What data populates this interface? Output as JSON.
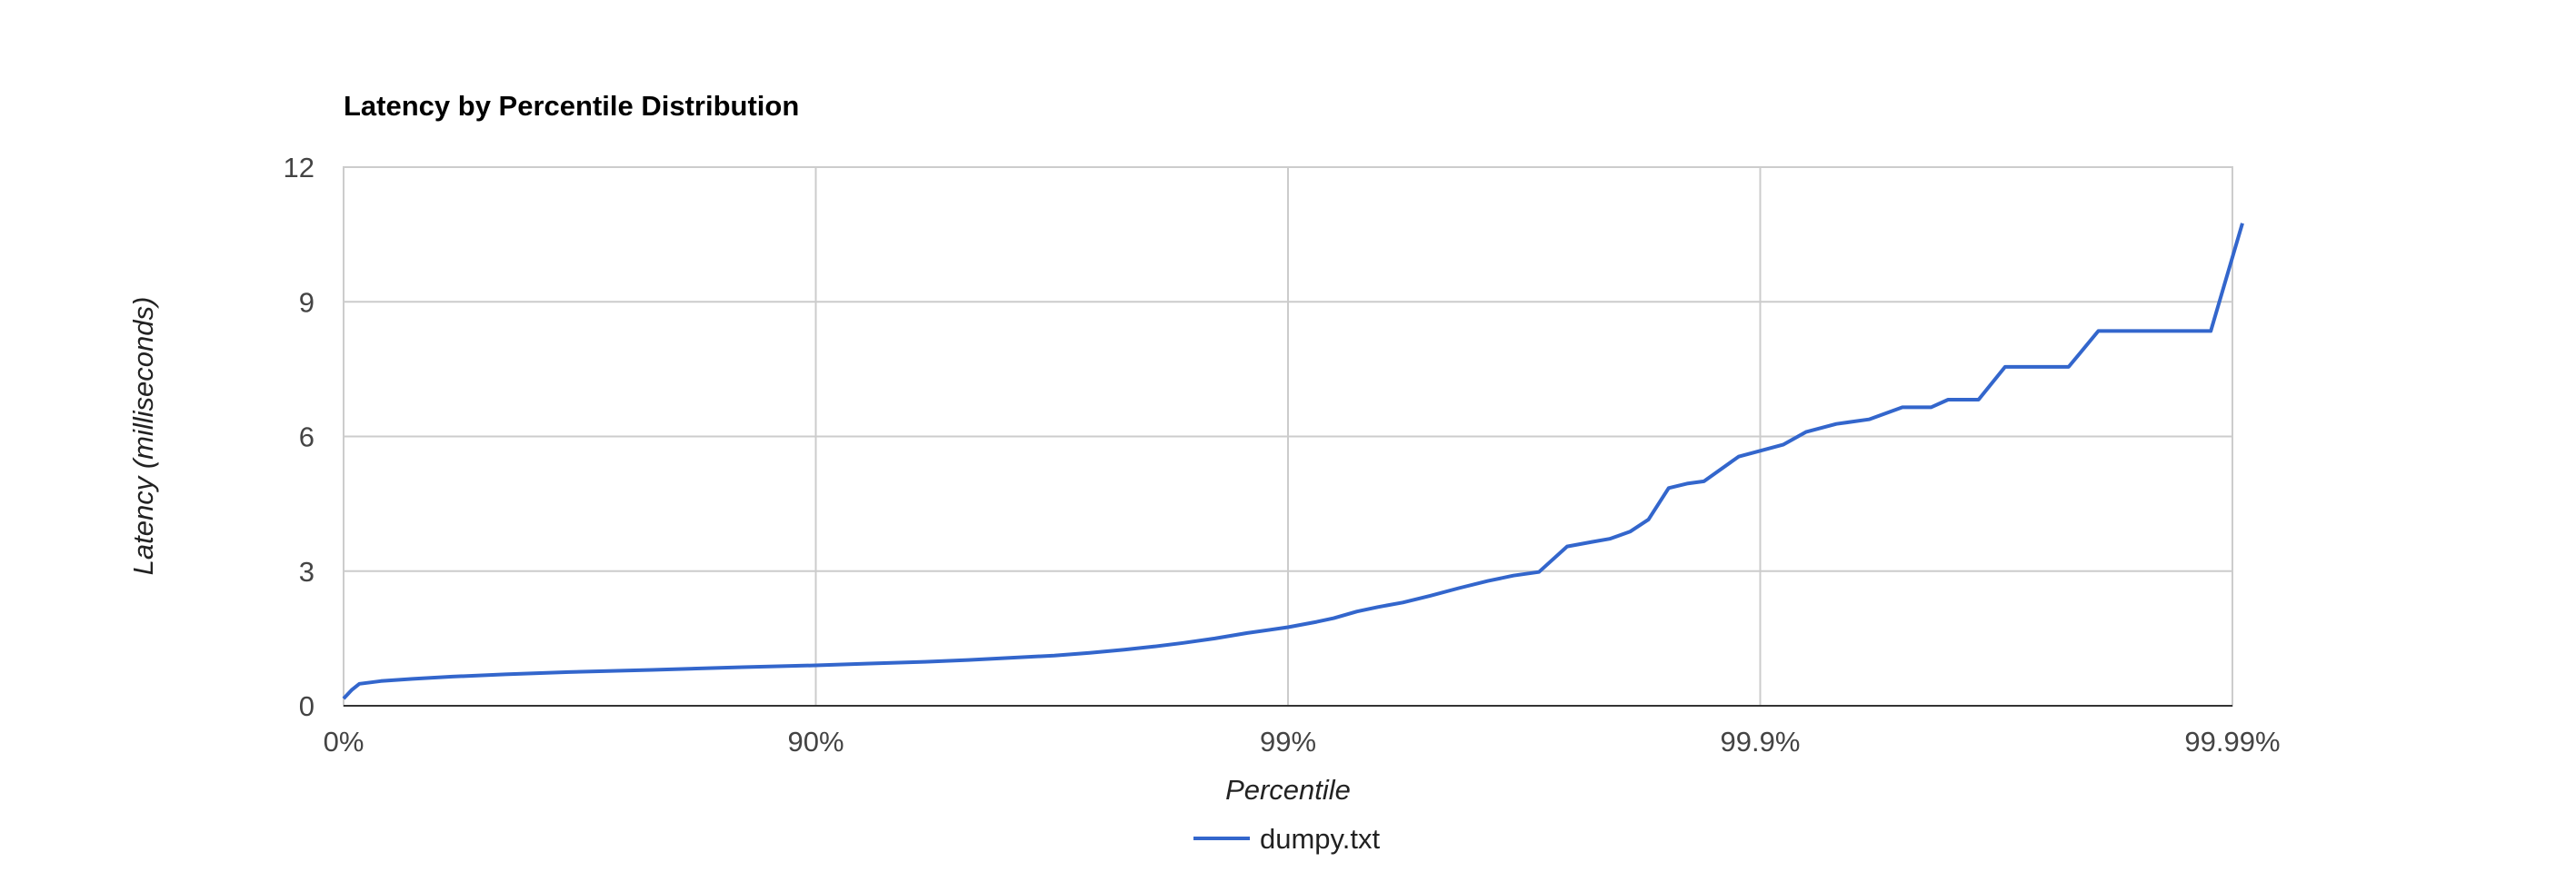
{
  "chart_data": {
    "type": "line",
    "title": "Latency by Percentile Distribution",
    "xlabel": "Percentile",
    "ylabel": "Latency (milliseconds)",
    "x_scale": "log-percentile (inverse of 1 - percentile)",
    "xlim": [
      1,
      10000
    ],
    "ylim": [
      0,
      12
    ],
    "x_ticks": [
      {
        "value": 1,
        "label": "0%"
      },
      {
        "value": 10,
        "label": "90%"
      },
      {
        "value": 100,
        "label": "99%"
      },
      {
        "value": 1000,
        "label": "99.9%"
      },
      {
        "value": 10000,
        "label": "99.99%"
      }
    ],
    "y_ticks": [
      {
        "value": 0,
        "label": "0"
      },
      {
        "value": 3,
        "label": "3"
      },
      {
        "value": 6,
        "label": "6"
      },
      {
        "value": 9,
        "label": "9"
      },
      {
        "value": 12,
        "label": "12"
      }
    ],
    "grid": true,
    "legend_position": "bottom",
    "series": [
      {
        "name": "dumpy.txt",
        "color": "#3366cc",
        "points": [
          [
            1.0,
            0.16
          ],
          [
            1.04,
            0.35
          ],
          [
            1.08,
            0.49
          ],
          [
            1.1,
            0.5
          ],
          [
            1.2,
            0.55
          ],
          [
            1.4,
            0.6
          ],
          [
            1.7,
            0.65
          ],
          [
            2.2,
            0.7
          ],
          [
            3.0,
            0.75
          ],
          [
            4.5,
            0.8
          ],
          [
            7.0,
            0.86
          ],
          [
            10.0,
            0.9
          ],
          [
            13.0,
            0.94
          ],
          [
            17.0,
            0.98
          ],
          [
            21.0,
            1.02
          ],
          [
            26.0,
            1.07
          ],
          [
            32.0,
            1.12
          ],
          [
            38.0,
            1.18
          ],
          [
            45.0,
            1.25
          ],
          [
            52.0,
            1.32
          ],
          [
            60.0,
            1.4
          ],
          [
            70.0,
            1.5
          ],
          [
            82.0,
            1.62
          ],
          [
            100.0,
            1.75
          ],
          [
            115.0,
            1.87
          ],
          [
            125.0,
            1.95
          ],
          [
            140.0,
            2.1
          ],
          [
            155.0,
            2.2
          ],
          [
            175.0,
            2.3
          ],
          [
            200.0,
            2.45
          ],
          [
            230.0,
            2.62
          ],
          [
            265.0,
            2.78
          ],
          [
            300.0,
            2.9
          ],
          [
            340.0,
            2.98
          ],
          [
            390.0,
            3.55
          ],
          [
            440.0,
            3.65
          ],
          [
            480.0,
            3.72
          ],
          [
            530.0,
            3.88
          ],
          [
            580.0,
            4.15
          ],
          [
            640.0,
            4.85
          ],
          [
            700.0,
            4.95
          ],
          [
            760.0,
            5.0
          ],
          [
            900.0,
            5.55
          ],
          [
            1000.0,
            5.68
          ],
          [
            1120.0,
            5.82
          ],
          [
            1250.0,
            6.1
          ],
          [
            1450.0,
            6.28
          ],
          [
            1700.0,
            6.38
          ],
          [
            2000.0,
            6.65
          ],
          [
            2300.0,
            6.65
          ],
          [
            2500.0,
            6.82
          ],
          [
            2900.0,
            6.82
          ],
          [
            3300.0,
            7.55
          ],
          [
            4500.0,
            7.55
          ],
          [
            5200.0,
            8.35
          ],
          [
            9000.0,
            8.35
          ],
          [
            10500.0,
            10.75
          ]
        ]
      }
    ]
  }
}
